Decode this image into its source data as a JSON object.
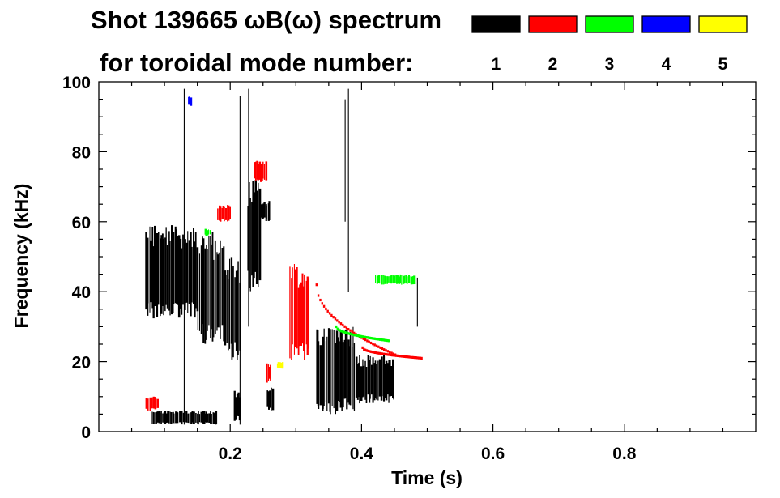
{
  "chart_data": {
    "type": "heatmap",
    "title_line1": "Shot 139665 ωB(ω) spectrum",
    "title_line2": "for toroidal mode number:",
    "xlabel": "Time (s)",
    "ylabel": "Frequency (kHz)",
    "xlim": [
      0,
      1.0
    ],
    "ylim": [
      0,
      100
    ],
    "x_ticks": [
      0.2,
      0.4,
      0.6,
      0.8
    ],
    "x_tick_labels": [
      "0.2",
      "0.4",
      "0.6",
      "0.8"
    ],
    "y_ticks": [
      0,
      20,
      40,
      60,
      80,
      100
    ],
    "y_tick_labels": [
      "0",
      "20",
      "40",
      "60",
      "80",
      "100"
    ],
    "legend_placement": "top-right",
    "modes": [
      {
        "label": "1",
        "color": "#000000"
      },
      {
        "label": "2",
        "color": "#ff0000"
      },
      {
        "label": "3",
        "color": "#00ff00"
      },
      {
        "label": "4",
        "color": "#0000ff"
      },
      {
        "label": "5",
        "color": "#ffff00"
      }
    ],
    "blobs": [
      {
        "mode": 1,
        "t": [
          0.07,
          0.15
        ],
        "f": [
          32,
          59
        ]
      },
      {
        "mode": 1,
        "t": [
          0.15,
          0.19
        ],
        "f": [
          25,
          57
        ]
      },
      {
        "mode": 1,
        "t": [
          0.19,
          0.215
        ],
        "f": [
          20,
          50
        ]
      },
      {
        "mode": 1,
        "t": [
          0.225,
          0.245
        ],
        "f": [
          40,
          72
        ]
      },
      {
        "mode": 1,
        "t": [
          0.245,
          0.26
        ],
        "f": [
          60,
          66
        ]
      },
      {
        "mode": 1,
        "t": [
          0.33,
          0.39
        ],
        "f": [
          5,
          30
        ]
      },
      {
        "mode": 1,
        "t": [
          0.39,
          0.45
        ],
        "f": [
          8,
          22
        ]
      },
      {
        "mode": 1,
        "t": [
          0.08,
          0.18
        ],
        "f": [
          2,
          6
        ]
      },
      {
        "mode": 1,
        "t": [
          0.205,
          0.215
        ],
        "f": [
          3,
          12
        ]
      },
      {
        "mode": 1,
        "t": [
          0.255,
          0.265
        ],
        "f": [
          6,
          13
        ]
      },
      {
        "mode": 2,
        "t": [
          0.235,
          0.255
        ],
        "f": [
          71,
          78
        ]
      },
      {
        "mode": 2,
        "t": [
          0.18,
          0.2
        ],
        "f": [
          60,
          65
        ]
      },
      {
        "mode": 2,
        "t": [
          0.29,
          0.32
        ],
        "f": [
          20,
          48
        ]
      },
      {
        "mode": 2,
        "t": [
          0.07,
          0.09
        ],
        "f": [
          6,
          10
        ]
      },
      {
        "mode": 2,
        "t": [
          0.255,
          0.262
        ],
        "f": [
          14,
          20
        ]
      },
      {
        "mode": 3,
        "t": [
          0.42,
          0.48
        ],
        "f": [
          42,
          45
        ]
      },
      {
        "mode": 3,
        "t": [
          0.16,
          0.17
        ],
        "f": [
          56,
          58
        ]
      },
      {
        "mode": 4,
        "t": [
          0.135,
          0.14
        ],
        "f": [
          93,
          96
        ]
      },
      {
        "mode": 5,
        "t": [
          0.27,
          0.28
        ],
        "f": [
          18,
          20
        ]
      }
    ],
    "chirps": [
      {
        "mode": 2,
        "t": [
          0.33,
          0.45
        ],
        "f_start": 42,
        "f_end": 22
      },
      {
        "mode": 2,
        "t": [
          0.4,
          0.49
        ],
        "f_start": 24,
        "f_end": 21
      },
      {
        "mode": 3,
        "t": [
          0.36,
          0.44
        ],
        "f_start": 30,
        "f_end": 26
      }
    ]
  }
}
